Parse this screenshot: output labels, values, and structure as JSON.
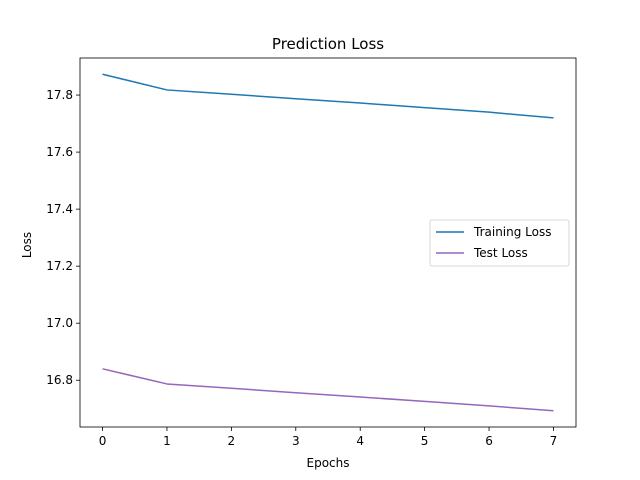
{
  "chart_data": {
    "type": "line",
    "title": "Prediction Loss",
    "xlabel": "Epochs",
    "ylabel": "Loss",
    "x": [
      0,
      1,
      2,
      3,
      4,
      5,
      6,
      7
    ],
    "xlim": [
      -0.35,
      7.35
    ],
    "ylim": [
      16.636,
      17.93
    ],
    "xticks": [
      0,
      1,
      2,
      3,
      4,
      5,
      6,
      7
    ],
    "yticks": [
      16.8,
      17.0,
      17.2,
      17.4,
      17.6,
      17.8
    ],
    "ytick_labels": [
      "16.8",
      "17.0",
      "17.2",
      "17.4",
      "17.6",
      "17.8"
    ],
    "grid": false,
    "legend_position": "center-right",
    "series": [
      {
        "name": "Training Loss",
        "color": "#1f77b4",
        "values": [
          17.873,
          17.818,
          17.803,
          17.787,
          17.772,
          17.756,
          17.74,
          17.72
        ]
      },
      {
        "name": "Test Loss",
        "color": "#9467bd",
        "values": [
          16.84,
          16.787,
          16.772,
          16.756,
          16.741,
          16.726,
          16.71,
          16.693
        ]
      }
    ]
  }
}
